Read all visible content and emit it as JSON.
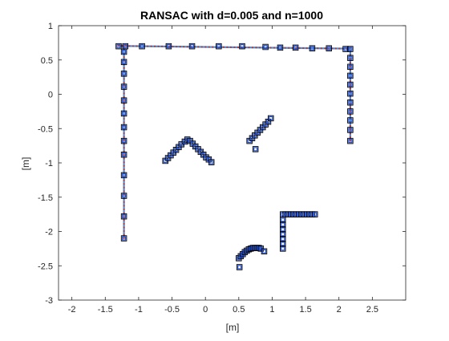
{
  "chart_data": {
    "type": "scatter",
    "title": "RANSAC with d=0.005 and n=1000",
    "xlabel": "[m]",
    "ylabel": "[m]",
    "xlim": [
      -2.2,
      3
    ],
    "ylim": [
      -3,
      1
    ],
    "xticks": [
      "-2",
      "-1.5",
      "-1",
      "-0.5",
      "0",
      "0.5",
      "1",
      "1.5",
      "2",
      "2.5"
    ],
    "yticks": [
      "1",
      "0.5",
      "0",
      "-0.5",
      "-1",
      "-1.5",
      "-2",
      "-2.5",
      "-3"
    ],
    "grid": false,
    "legend": "none",
    "colors": {
      "points": "#1f4fd6",
      "fit_line": "#4a90d9",
      "fit_markers": "#c0392b",
      "inlier_marker": "#000000",
      "axes": "#262626"
    },
    "series": [
      {
        "role": "scan-points",
        "marker": "square",
        "points": [
          [
            -1.3,
            0.7
          ],
          [
            -1.2,
            0.7
          ],
          [
            -0.95,
            0.7
          ],
          [
            -0.55,
            0.7
          ],
          [
            -0.2,
            0.7
          ],
          [
            0.2,
            0.7
          ],
          [
            0.55,
            0.7
          ],
          [
            0.9,
            0.69
          ],
          [
            1.12,
            0.68
          ],
          [
            1.35,
            0.68
          ],
          [
            1.6,
            0.67
          ],
          [
            1.85,
            0.67
          ],
          [
            2.1,
            0.66
          ],
          [
            -1.22,
            0.62
          ],
          [
            -1.22,
            0.47
          ],
          [
            -1.22,
            0.3
          ],
          [
            -1.22,
            0.11
          ],
          [
            -1.22,
            -0.09
          ],
          [
            -1.22,
            -0.28
          ],
          [
            -1.22,
            -0.48
          ],
          [
            -1.22,
            -0.68
          ],
          [
            -1.22,
            -0.88
          ],
          [
            -1.22,
            -1.18
          ],
          [
            -1.22,
            -1.48
          ],
          [
            -1.22,
            -1.78
          ],
          [
            -1.22,
            -2.1
          ],
          [
            2.17,
            0.66
          ],
          [
            2.17,
            0.53
          ],
          [
            2.17,
            0.4
          ],
          [
            2.17,
            0.27
          ],
          [
            2.17,
            0.14
          ],
          [
            2.17,
            0.01
          ],
          [
            2.17,
            -0.12
          ],
          [
            2.17,
            -0.25
          ],
          [
            2.17,
            -0.38
          ],
          [
            2.17,
            -0.52
          ],
          [
            2.17,
            -0.68
          ],
          [
            -0.6,
            -0.97
          ],
          [
            -0.56,
            -0.93
          ],
          [
            -0.52,
            -0.89
          ],
          [
            -0.48,
            -0.85
          ],
          [
            -0.44,
            -0.81
          ],
          [
            -0.4,
            -0.77
          ],
          [
            -0.36,
            -0.73
          ],
          [
            -0.31,
            -0.69
          ],
          [
            -0.27,
            -0.66
          ],
          [
            -0.23,
            -0.68
          ],
          [
            -0.19,
            -0.72
          ],
          [
            -0.15,
            -0.76
          ],
          [
            -0.11,
            -0.8
          ],
          [
            -0.07,
            -0.84
          ],
          [
            -0.03,
            -0.88
          ],
          [
            0.01,
            -0.92
          ],
          [
            0.05,
            -0.95
          ],
          [
            0.09,
            -0.99
          ],
          [
            0.66,
            -0.68
          ],
          [
            0.7,
            -0.64
          ],
          [
            0.74,
            -0.6
          ],
          [
            0.78,
            -0.56
          ],
          [
            0.82,
            -0.52
          ],
          [
            0.86,
            -0.48
          ],
          [
            0.9,
            -0.44
          ],
          [
            0.94,
            -0.4
          ],
          [
            0.98,
            -0.35
          ],
          [
            0.75,
            -0.8
          ],
          [
            1.16,
            -1.75
          ],
          [
            1.2,
            -1.75
          ],
          [
            1.24,
            -1.75
          ],
          [
            1.28,
            -1.75
          ],
          [
            1.32,
            -1.75
          ],
          [
            1.36,
            -1.75
          ],
          [
            1.4,
            -1.75
          ],
          [
            1.44,
            -1.75
          ],
          [
            1.48,
            -1.75
          ],
          [
            1.52,
            -1.75
          ],
          [
            1.56,
            -1.75
          ],
          [
            1.6,
            -1.75
          ],
          [
            1.64,
            -1.75
          ],
          [
            1.16,
            -1.83
          ],
          [
            1.16,
            -1.9
          ],
          [
            1.16,
            -1.97
          ],
          [
            1.16,
            -2.04
          ],
          [
            1.16,
            -2.11
          ],
          [
            1.16,
            -2.18
          ],
          [
            1.16,
            -2.25
          ],
          [
            0.5,
            -2.39
          ],
          [
            0.53,
            -2.36
          ],
          [
            0.56,
            -2.33
          ],
          [
            0.59,
            -2.3
          ],
          [
            0.62,
            -2.28
          ],
          [
            0.65,
            -2.26
          ],
          [
            0.68,
            -2.25
          ],
          [
            0.71,
            -2.24
          ],
          [
            0.74,
            -2.24
          ],
          [
            0.77,
            -2.24
          ],
          [
            0.8,
            -2.24
          ],
          [
            0.83,
            -2.25
          ],
          [
            0.88,
            -2.29
          ],
          [
            0.51,
            -2.52
          ]
        ]
      }
    ],
    "fitted_lines": [
      {
        "from": [
          -1.3,
          0.705
        ],
        "to": [
          2.17,
          0.665
        ]
      },
      {
        "from": [
          -1.22,
          0.7
        ],
        "to": [
          -1.22,
          -2.1
        ]
      },
      {
        "from": [
          2.17,
          0.68
        ],
        "to": [
          2.17,
          -0.68
        ]
      }
    ]
  }
}
